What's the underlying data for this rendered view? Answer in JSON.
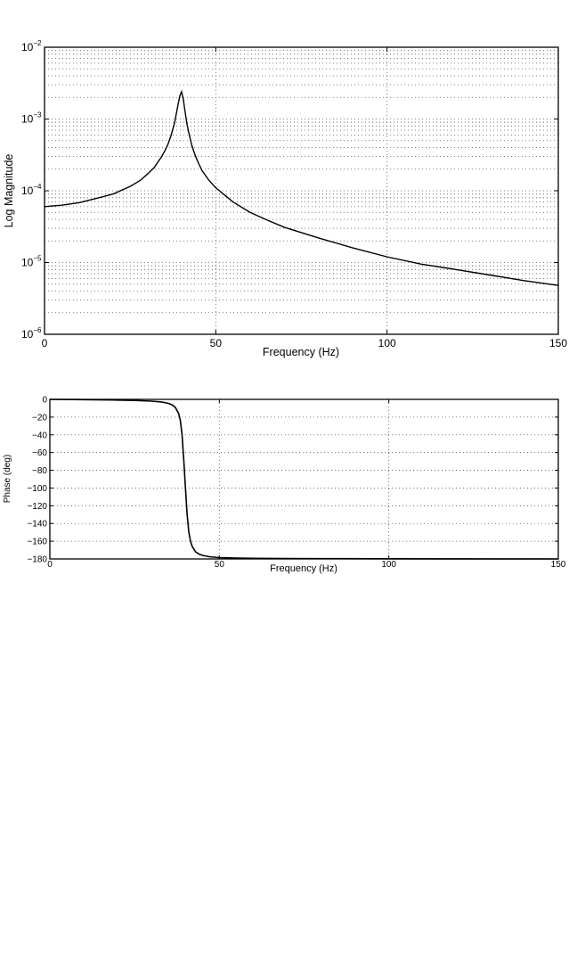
{
  "chart_data": [
    {
      "type": "line",
      "xlabel": "Frequency (Hz)",
      "ylabel": "Log Magnitude",
      "xlim": [
        0,
        150
      ],
      "ylim": [
        1e-06,
        0.01
      ],
      "yscale": "log",
      "grid": true,
      "x_ticks": [
        0,
        50,
        100,
        150
      ],
      "x_tick_labels": [
        "0",
        "50",
        "100",
        "150"
      ],
      "y_ticks": [
        1e-06,
        1e-05,
        0.0001,
        0.001,
        0.01
      ],
      "y_tick_labels": [
        {
          "base": "10",
          "exp": "−6"
        },
        {
          "base": "10",
          "exp": "−5"
        },
        {
          "base": "10",
          "exp": "−4"
        },
        {
          "base": "10",
          "exp": "−3"
        },
        {
          "base": "10",
          "exp": "−2"
        }
      ],
      "series": [
        {
          "x": [
            0,
            5,
            10,
            15,
            20,
            25,
            28,
            30,
            32,
            34,
            35,
            36,
            37,
            38,
            38.5,
            39,
            39.5,
            40,
            40.5,
            41,
            41.5,
            42,
            43,
            44,
            45,
            46,
            48,
            50,
            55,
            60,
            65,
            70,
            80,
            90,
            100,
            110,
            120,
            130,
            140,
            150
          ],
          "y": [
            6e-05,
            6.3e-05,
            6.8e-05,
            7.8e-05,
            9e-05,
            0.000115,
            0.00014,
            0.00017,
            0.00021,
            0.00029,
            0.00035,
            0.00044,
            0.0006,
            0.0009,
            0.0012,
            0.0016,
            0.0021,
            0.0024,
            0.0019,
            0.0013,
            0.0009,
            0.00068,
            0.00043,
            0.00031,
            0.00024,
            0.00019,
            0.00014,
            0.00011,
            7e-05,
            5e-05,
            3.9e-05,
            3.1e-05,
            2.2e-05,
            1.6e-05,
            1.2e-05,
            9.5e-06,
            8e-06,
            6.7e-06,
            5.6e-06,
            4.8e-06
          ]
        }
      ]
    },
    {
      "type": "line",
      "xlabel": "Frequency (Hz)",
      "ylabel": "Phase (deg)",
      "xlim": [
        0,
        150
      ],
      "ylim": [
        -180,
        0
      ],
      "grid": true,
      "x_ticks": [
        0,
        50,
        100,
        150
      ],
      "x_tick_labels": [
        "0",
        "50",
        "100",
        "150"
      ],
      "y_ticks": [
        0,
        -20,
        -40,
        -60,
        -80,
        -100,
        -120,
        -140,
        -160,
        -180
      ],
      "y_tick_labels": [
        "0",
        "−20",
        "−40",
        "−60",
        "−80",
        "−100",
        "−120",
        "−140",
        "−160",
        "−180"
      ],
      "series": [
        {
          "x": [
            0,
            10,
            20,
            25,
            30,
            33,
            35,
            36,
            37,
            38,
            38.5,
            39,
            39.5,
            40,
            40.5,
            41,
            41.5,
            42,
            43,
            44,
            45,
            47,
            50,
            55,
            60,
            70,
            80,
            100,
            120,
            150
          ],
          "y": [
            0,
            -0.3,
            -0.8,
            -1.2,
            -2,
            -3,
            -4.5,
            -6,
            -9,
            -16,
            -24,
            -40,
            -68,
            -100,
            -130,
            -150,
            -160,
            -166,
            -172,
            -174.5,
            -176,
            -177.5,
            -178.5,
            -179,
            -179.3,
            -179.5,
            -179.7,
            -179.8,
            -179.9,
            -180
          ]
        }
      ]
    }
  ]
}
